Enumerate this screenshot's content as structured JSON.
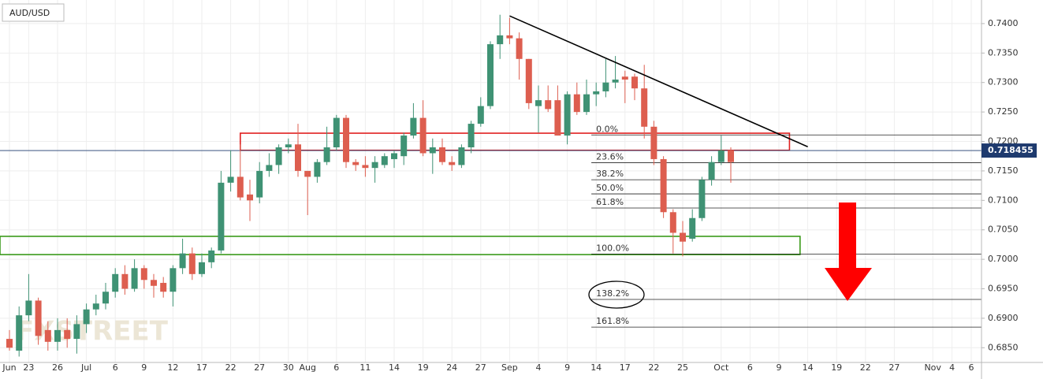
{
  "chart_data": {
    "type": "candlestick",
    "title": "AUD/USD",
    "watermark": "FXSTREET",
    "up_color": "#3f9274",
    "down_color": "#dd5e4f",
    "grid": true,
    "categories": [
      "Jun",
      null,
      "23",
      null,
      null,
      "26",
      null,
      null,
      "Jul",
      null,
      null,
      "6",
      null,
      null,
      "9",
      null,
      null,
      "12",
      null,
      null,
      "17",
      null,
      null,
      "22",
      null,
      null,
      "27",
      null,
      null,
      "30",
      null,
      "Aug",
      null,
      null,
      "6",
      null,
      null,
      "11",
      null,
      null,
      "14",
      null,
      null,
      "19",
      null,
      null,
      "24",
      null,
      null,
      "27",
      null,
      null,
      "Sep",
      null,
      null,
      "4",
      null,
      null,
      "9",
      null,
      null,
      "14",
      null,
      null,
      "17",
      null,
      null,
      "22",
      null,
      null,
      "25",
      null,
      null,
      null,
      "Oct",
      null,
      null,
      "6",
      null,
      null,
      "9",
      null,
      null,
      "14",
      null,
      null,
      "19",
      null,
      null,
      "22",
      null,
      null,
      "27",
      null,
      null,
      null,
      "Nov",
      null,
      "4",
      null,
      "6"
    ],
    "open": [
      0.6865,
      0.6845,
      0.6905,
      0.693,
      0.688,
      0.686,
      0.688,
      0.6865,
      0.689,
      0.6915,
      0.6925,
      0.6945,
      0.6975,
      0.695,
      0.6985,
      0.6965,
      0.696,
      0.6945,
      0.6985,
      0.701,
      0.6975,
      0.6995,
      0.7015,
      0.713,
      0.714,
      0.711,
      0.7105,
      0.715,
      0.716,
      0.719,
      0.7195,
      0.715,
      0.714,
      0.7165,
      0.719,
      0.724,
      0.7165,
      0.716,
      0.7155,
      0.716,
      0.717,
      0.7175,
      0.721,
      0.724,
      0.718,
      0.719,
      0.7165,
      0.716,
      0.719,
      0.723,
      0.726,
      0.7365,
      0.738,
      0.7375,
      0.734,
      0.726,
      0.727,
      0.727,
      0.721,
      0.728,
      0.725,
      0.728,
      0.7285,
      0.73,
      0.731,
      0.731,
      0.729,
      0.7225,
      0.717,
      0.708,
      0.7045,
      0.7035,
      0.707,
      0.7135,
      0.7165,
      0.7185,
      null,
      null,
      null,
      null,
      null,
      null,
      null,
      null,
      null,
      null,
      null,
      null,
      null,
      null,
      null,
      null,
      null,
      null,
      null,
      null,
      null,
      null,
      null,
      null,
      null
    ],
    "high": [
      0.688,
      0.692,
      0.6975,
      0.6935,
      0.6895,
      0.69,
      0.69,
      0.6905,
      0.6925,
      0.694,
      0.696,
      0.6985,
      0.699,
      0.7,
      0.699,
      0.6975,
      0.697,
      0.699,
      0.7035,
      0.702,
      0.701,
      0.702,
      0.715,
      0.7185,
      0.7195,
      0.7135,
      0.7165,
      0.718,
      0.7195,
      0.7205,
      0.723,
      0.715,
      0.717,
      0.7225,
      0.7245,
      0.7245,
      0.717,
      0.7175,
      0.7175,
      0.718,
      0.7185,
      0.7215,
      0.7265,
      0.727,
      0.7205,
      0.7205,
      0.7175,
      0.7195,
      0.7235,
      0.7275,
      0.737,
      0.7415,
      0.741,
      0.7385,
      0.734,
      0.7295,
      0.7295,
      0.7295,
      0.7285,
      0.73,
      0.7305,
      0.73,
      0.734,
      0.7345,
      0.732,
      0.7315,
      0.733,
      0.7235,
      0.7175,
      0.7085,
      0.7065,
      0.7085,
      0.714,
      0.7175,
      0.721,
      0.719,
      null,
      null,
      null,
      null,
      null,
      null,
      null,
      null,
      null,
      null,
      null,
      null,
      null,
      null,
      null,
      null,
      null,
      null,
      null,
      null,
      null,
      null,
      null,
      null,
      null
    ],
    "low": [
      0.6845,
      0.6835,
      0.6895,
      0.6855,
      0.6845,
      0.6845,
      0.685,
      0.684,
      0.6875,
      0.6905,
      0.6915,
      0.6935,
      0.694,
      0.6945,
      0.695,
      0.6935,
      0.6935,
      0.692,
      0.6975,
      0.6965,
      0.697,
      0.6985,
      0.701,
      0.7115,
      0.71,
      0.7065,
      0.7095,
      0.714,
      0.7145,
      0.718,
      0.714,
      0.7075,
      0.713,
      0.716,
      0.7185,
      0.7155,
      0.715,
      0.714,
      0.713,
      0.7155,
      0.7155,
      0.716,
      0.7205,
      0.7175,
      0.7145,
      0.716,
      0.715,
      0.7155,
      0.718,
      0.7225,
      0.7255,
      0.734,
      0.7365,
      0.7305,
      0.7255,
      0.7215,
      0.725,
      0.721,
      0.7195,
      0.7245,
      0.7245,
      0.726,
      0.7275,
      0.729,
      0.7265,
      0.727,
      0.7205,
      0.716,
      0.707,
      0.701,
      0.7005,
      0.703,
      0.7065,
      0.7125,
      0.716,
      0.713,
      null,
      null,
      null,
      null,
      null,
      null,
      null,
      null,
      null,
      null,
      null,
      null,
      null,
      null,
      null,
      null,
      null,
      null,
      null,
      null,
      null,
      null,
      null,
      null,
      null
    ],
    "close": [
      0.685,
      0.6905,
      0.693,
      0.687,
      0.686,
      0.688,
      0.6865,
      0.689,
      0.6915,
      0.6925,
      0.6945,
      0.6975,
      0.695,
      0.6985,
      0.6965,
      0.6955,
      0.6945,
      0.6985,
      0.701,
      0.6975,
      0.6995,
      0.7015,
      0.713,
      0.714,
      0.7105,
      0.71,
      0.715,
      0.716,
      0.719,
      0.7195,
      0.715,
      0.714,
      0.7165,
      0.719,
      0.724,
      0.7165,
      0.716,
      0.7155,
      0.7165,
      0.7175,
      0.718,
      0.721,
      0.724,
      0.718,
      0.719,
      0.7165,
      0.716,
      0.719,
      0.723,
      0.726,
      0.7365,
      0.738,
      0.7375,
      0.734,
      0.7265,
      0.727,
      0.7255,
      0.721,
      0.728,
      0.725,
      0.728,
      0.7285,
      0.73,
      0.7305,
      0.7305,
      0.729,
      0.7225,
      0.717,
      0.708,
      0.7045,
      0.703,
      0.707,
      0.7135,
      0.7165,
      0.7185,
      0.7165,
      null,
      null,
      null,
      null,
      null,
      null,
      null,
      null,
      null,
      null,
      null,
      null,
      null,
      null,
      null,
      null,
      null,
      null,
      null,
      null,
      null,
      null,
      null,
      null,
      null
    ],
    "ylim": [
      0.6825,
      0.744
    ],
    "yticks": [
      {
        "value": 0.685,
        "label": "0.6850"
      },
      {
        "value": 0.69,
        "label": "0.6900"
      },
      {
        "value": 0.695,
        "label": "0.6950"
      },
      {
        "value": 0.7,
        "label": "0.7000"
      },
      {
        "value": 0.705,
        "label": "0.7050"
      },
      {
        "value": 0.71,
        "label": "0.7100"
      },
      {
        "value": 0.715,
        "label": "0.7150"
      },
      {
        "value": 0.72,
        "label": "0.7200"
      },
      {
        "value": 0.725,
        "label": "0.7250"
      },
      {
        "value": 0.73,
        "label": "0.7300"
      },
      {
        "value": 0.735,
        "label": "0.7350"
      },
      {
        "value": 0.74,
        "label": "0.7400"
      }
    ],
    "last_price": {
      "value": 0.718455,
      "label": "0.718455"
    },
    "trend_line": {
      "x": [
        52,
        83
      ],
      "y": [
        0.7413,
        0.7191
      ],
      "color": "#000000"
    },
    "zones": [
      {
        "color": "#e02020",
        "x": [
          24,
          81.1
        ],
        "y": [
          0.7214,
          0.7185
        ]
      },
      {
        "color": "#3a9a1a",
        "x": [
          -1,
          82.2
        ],
        "y": [
          0.7039,
          0.7008
        ]
      }
    ],
    "fib": {
      "start": 60.5,
      "levels": [
        {
          "label": "0.0%",
          "price": 0.7211
        },
        {
          "label": "23.6%",
          "price": 0.7164
        },
        {
          "label": "38.2%",
          "price": 0.7135
        },
        {
          "label": "50.0%",
          "price": 0.7111
        },
        {
          "label": "61.8%",
          "price": 0.7087
        },
        {
          "label": "100.0%",
          "price": 0.7009
        },
        {
          "label": "138.2%",
          "price": 0.6932
        },
        {
          "label": "161.8%",
          "price": 0.6885
        }
      ]
    }
  }
}
